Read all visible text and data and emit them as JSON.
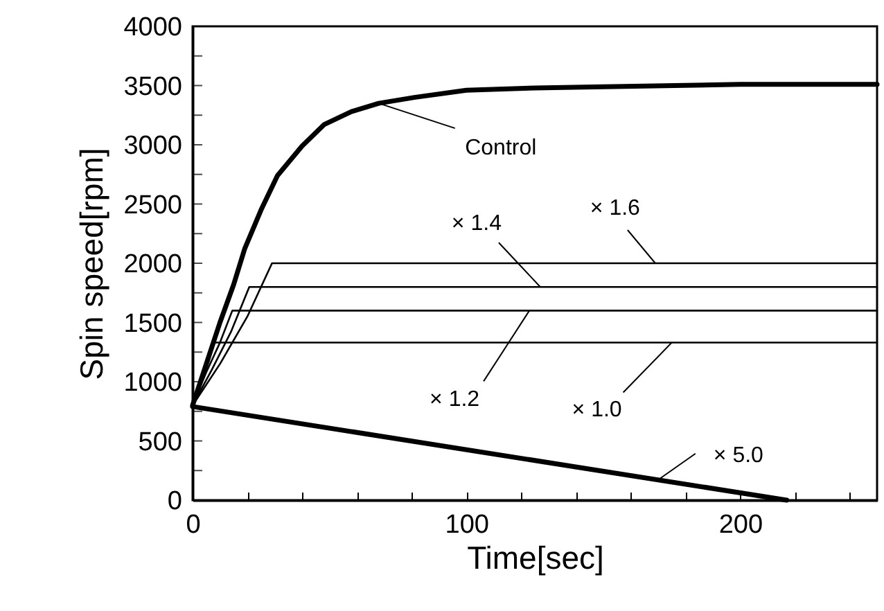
{
  "chart_data": {
    "type": "line",
    "xlabel": "Time[sec]",
    "ylabel": "Spin speed[rpm]",
    "xlim": [
      0,
      250
    ],
    "xticks": [
      0,
      {
        "value": 20,
        "label": null
      },
      {
        "value": 40,
        "label": null
      },
      {
        "value": 60,
        "label": null
      },
      {
        "value": 80,
        "label": null
      },
      100,
      {
        "value": 120,
        "label": null
      },
      {
        "value": 140,
        "label": null
      },
      {
        "value": 160,
        "label": null
      },
      {
        "value": 180,
        "label": null
      },
      200,
      {
        "value": 220,
        "label": null
      },
      {
        "value": 240,
        "label": null
      }
    ],
    "ylim": [
      0,
      4000
    ],
    "yticks": [
      0,
      {
        "value": 250,
        "label": null
      },
      500,
      {
        "value": 750,
        "label": null
      },
      1000,
      {
        "value": 1250,
        "label": null
      },
      1500,
      {
        "value": 1750,
        "label": null
      },
      2000,
      {
        "value": 2250,
        "label": null
      },
      2500,
      {
        "value": 2750,
        "label": null
      },
      3000,
      {
        "value": 3250,
        "label": null
      },
      3500,
      {
        "value": 3750,
        "label": null
      },
      4000
    ],
    "grid": false,
    "marker": "none",
    "line_style": "solid",
    "series": [
      {
        "color": "#000000",
        "x": [
          0,
          5,
          10,
          15,
          19,
          25,
          31,
          40,
          48,
          58,
          68,
          81,
          100,
          125,
          150,
          200,
          250
        ],
        "values": [
          800,
          1150,
          1500,
          1820,
          2120,
          2450,
          2740,
          2990,
          3170,
          3280,
          3350,
          3400,
          3460,
          3480,
          3490,
          3510,
          3510
        ]
      },
      {
        "color": "#000000",
        "x": [
          0,
          3,
          6,
          8,
          250
        ],
        "values": [
          800,
          1000,
          1180,
          1330,
          1330
        ]
      },
      {
        "color": "#000000",
        "x": [
          0,
          5,
          10,
          14.5,
          250
        ],
        "values": [
          800,
          1080,
          1330,
          1600,
          1600
        ]
      },
      {
        "color": "#000000",
        "x": [
          0,
          7,
          14,
          20.7,
          250
        ],
        "values": [
          800,
          1100,
          1420,
          1800,
          1800
        ]
      },
      {
        "color": "#000000",
        "x": [
          0,
          10,
          20,
          29,
          250
        ],
        "values": [
          800,
          1150,
          1550,
          2000,
          2000
        ]
      },
      {
        "color": "#000000",
        "x": [
          0,
          217
        ],
        "values": [
          790,
          0
        ]
      }
    ],
    "annotations": [
      {
        "text": "Control",
        "x": 68,
        "y": 3350
      },
      {
        "text": "× 1.4",
        "x": 127,
        "y": 1800
      },
      {
        "text": "× 1.6",
        "x": 169,
        "y": 2000
      },
      {
        "text": "× 1.2",
        "x": 123,
        "y": 1600
      },
      {
        "text": "× 1.0",
        "x": 175,
        "y": 1330
      },
      {
        "text": "× 5.0",
        "x": 170,
        "y": 171
      }
    ]
  }
}
